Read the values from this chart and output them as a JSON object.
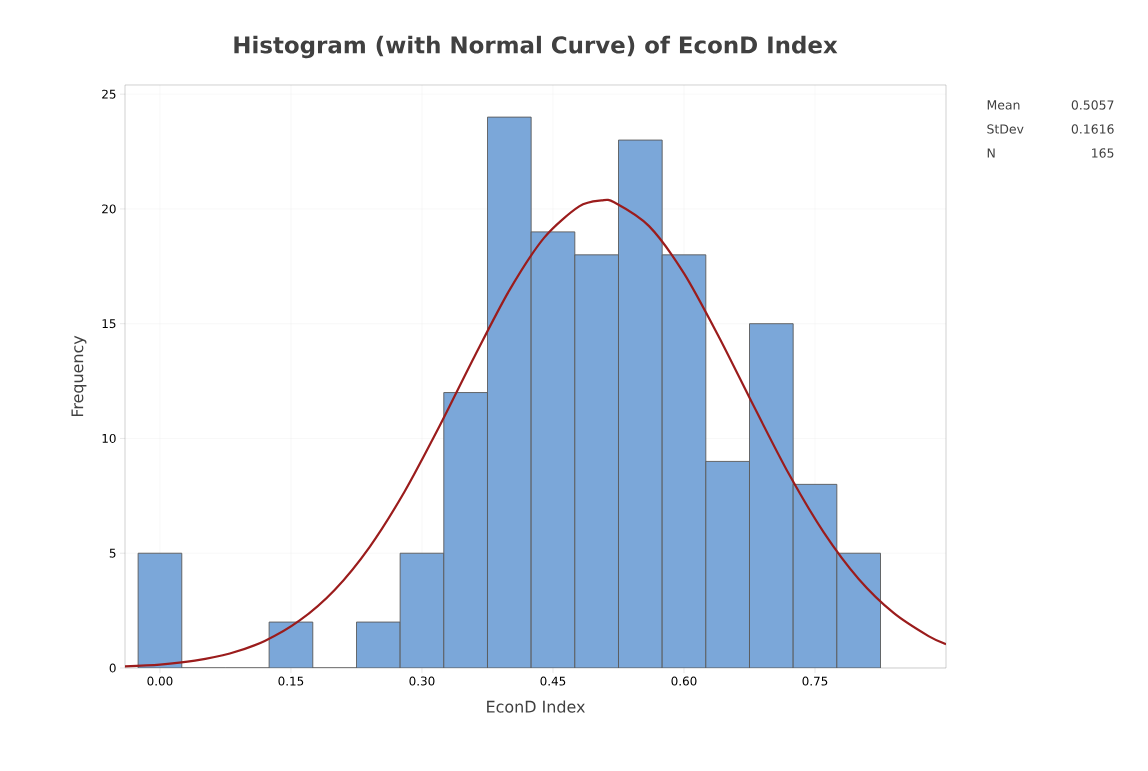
{
  "chart_data": {
    "type": "histogram",
    "title": "Histogram (with Normal Curve) of EconD Index",
    "xlabel": "EconD Index",
    "ylabel": "Frequency",
    "bins": [
      -0.025,
      0.025,
      0.075,
      0.125,
      0.175,
      0.225,
      0.275,
      0.325,
      0.375,
      0.425,
      0.475,
      0.525,
      0.575,
      0.625,
      0.675,
      0.725,
      0.775,
      0.825
    ],
    "values": [
      5,
      0,
      0,
      2,
      0,
      2,
      5,
      12,
      24,
      19,
      18,
      23,
      18,
      9,
      15,
      8,
      5
    ],
    "color": "#7ba7d9",
    "series": [
      {
        "type": "line",
        "color": "#9b1c1c",
        "x": [
          -0.04,
          0.0,
          0.04,
          0.08,
          0.12,
          0.16,
          0.2,
          0.24,
          0.28,
          0.32,
          0.36,
          0.4,
          0.44,
          0.48,
          0.5057,
          0.52,
          0.56,
          0.6,
          0.64,
          0.68,
          0.72,
          0.76,
          0.8,
          0.84,
          0.88,
          0.9
        ],
        "values": [
          0.07,
          0.15,
          0.32,
          0.63,
          1.18,
          2.07,
          3.4,
          5.27,
          7.68,
          10.53,
          13.56,
          16.45,
          18.75,
          20.11,
          20.37,
          20.29,
          19.25,
          17.19,
          14.42,
          11.4,
          8.46,
          5.91,
          3.88,
          2.4,
          1.39,
          1.04
        ]
      }
    ],
    "xlim": [
      -0.04,
      0.9
    ],
    "ylim": [
      0,
      25.4
    ],
    "xticks": [
      {
        "value": 0,
        "label": "0.00"
      },
      0.15,
      {
        "value": 0.3,
        "label": "0.30"
      },
      0.45,
      {
        "value": 0.6,
        "label": "0.60"
      },
      0.75
    ],
    "yticks": [
      0,
      5,
      10,
      15,
      20,
      25
    ],
    "grid": true,
    "annotations": [
      "Mean",
      "0.5057",
      "StDev",
      "0.1616",
      "N",
      "165"
    ]
  }
}
